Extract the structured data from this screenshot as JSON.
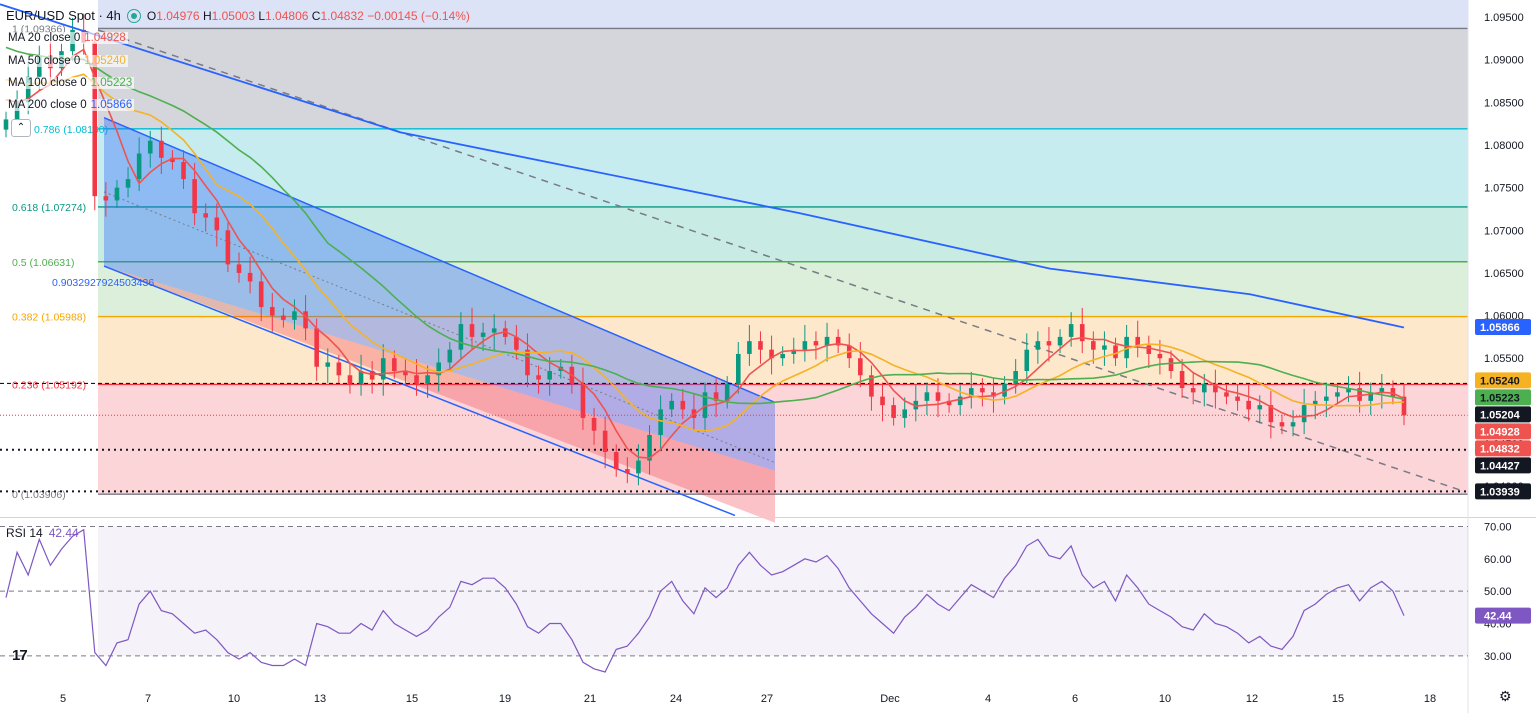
{
  "header": {
    "symbol": "EUR/USD Spot · 4h",
    "ohlc_label_o": "O",
    "open": "1.04976",
    "ohlc_label_h": "H",
    "high": "1.05003",
    "ohlc_label_l": "L",
    "low": "1.04806",
    "ohlc_label_c": "C",
    "close": "1.04832",
    "change": "−0.00145 (−0.14%)"
  },
  "indicators": [
    {
      "label": "MA 20 close 0",
      "value": "1.04928",
      "color": "#ef5350"
    },
    {
      "label": "MA 50 close 0",
      "value": "1.05240",
      "color": "#f5b324"
    },
    {
      "label": "MA 100 close 0",
      "value": "1.05223",
      "color": "#4caf50"
    },
    {
      "label": "MA 200 close 0",
      "value": "1.05866",
      "color": "#2962ff"
    }
  ],
  "rsi": {
    "label": "RSI 14",
    "value": "42.44",
    "color": "#7e57c2"
  },
  "chart_data": [
    {
      "type": "candlestick",
      "timeframe": "4h",
      "x_ticks": [
        "5",
        "7",
        "10",
        "13",
        "15",
        "19",
        "21",
        "24",
        "27",
        "Dec",
        "4",
        "6",
        "10",
        "12",
        "15",
        "18"
      ],
      "ylim": [
        1.0365,
        1.097
      ],
      "y_ticks": [
        "1.09500",
        "1.09000",
        "1.08500",
        "1.08000",
        "1.07500",
        "1.07000",
        "1.06500",
        "1.06000",
        "1.05500",
        "1.05000",
        "1.04500",
        "1.04000"
      ],
      "closes": [
        1.083,
        1.085,
        1.088,
        1.0905,
        1.089,
        1.091,
        1.0935,
        1.092,
        1.074,
        1.0735,
        1.075,
        1.076,
        1.079,
        1.0805,
        1.0785,
        1.078,
        1.076,
        1.072,
        1.0715,
        1.07,
        1.066,
        1.065,
        1.064,
        1.061,
        1.06,
        1.0595,
        1.0605,
        1.0585,
        1.054,
        1.0545,
        1.053,
        1.052,
        1.0535,
        1.0525,
        1.055,
        1.0535,
        1.053,
        1.052,
        1.053,
        1.0545,
        1.056,
        1.059,
        1.0575,
        1.058,
        1.0585,
        1.0575,
        1.056,
        1.053,
        1.0525,
        1.0535,
        1.054,
        1.052,
        1.048,
        1.0465,
        1.044,
        1.042,
        1.0415,
        1.043,
        1.046,
        1.049,
        1.05,
        1.049,
        1.048,
        1.051,
        1.05,
        1.052,
        1.0555,
        1.057,
        1.056,
        1.055,
        1.0555,
        1.056,
        1.057,
        1.0565,
        1.0575,
        1.0565,
        1.055,
        1.053,
        1.0505,
        1.0495,
        1.048,
        1.049,
        1.05,
        1.051,
        1.05,
        1.0495,
        1.0505,
        1.0515,
        1.051,
        1.0505,
        1.052,
        1.0535,
        1.056,
        1.057,
        1.0565,
        1.0575,
        1.059,
        1.057,
        1.056,
        1.0565,
        1.055,
        1.0575,
        1.0565,
        1.0555,
        1.055,
        1.0535,
        1.0515,
        1.051,
        1.052,
        1.051,
        1.0505,
        1.05,
        1.049,
        1.0495,
        1.0475,
        1.047,
        1.0475,
        1.0495,
        1.05,
        1.0505,
        1.051,
        1.0515,
        1.05,
        1.051,
        1.0515,
        1.0505,
        1.0483
      ],
      "moving_averages": [
        {
          "name": "MA 20 close 0",
          "last": 1.04928
        },
        {
          "name": "MA 50 close 0",
          "last": 1.0524
        },
        {
          "name": "MA 100 close 0",
          "last": 1.05223
        },
        {
          "name": "MA 200 close 0",
          "last": 1.05866
        }
      ],
      "fibonacci": [
        {
          "label": "1 (1.09366)",
          "value": 1.09366,
          "color": "#787b86"
        },
        {
          "label": "0.786 (1.08190)",
          "value": 1.0819,
          "color": "#00bcd4"
        },
        {
          "label": "0.618 (1.07274)",
          "value": 1.07274,
          "color": "#089981"
        },
        {
          "label": "0.5 (1.06631)",
          "value": 1.06631,
          "color": "#4caf50"
        },
        {
          "label": "0.382 (1.05988)",
          "value": 1.05988,
          "color": "#f7a600"
        },
        {
          "label": "0.236 (1.05192)",
          "value": 1.05192,
          "color": "#f23645"
        },
        {
          "label": "0 (1.03906)",
          "value": 1.03906,
          "color": "#787b86"
        }
      ],
      "channel_label": "0.9032927924503436",
      "horizontal_levels": [
        {
          "value": 1.04427,
          "label": "1.04427",
          "style": "dotted"
        },
        {
          "value": 1.03939,
          "label": "1.03939",
          "style": "dotted"
        },
        {
          "value": 1.05204,
          "label": "1.05204",
          "style": "dashed"
        }
      ],
      "price_labels": [
        {
          "value": "1.05866",
          "color": "#2962ff"
        },
        {
          "value": "1.05240",
          "color": "#f5b324"
        },
        {
          "value": "1.05223",
          "color": "#4caf50"
        },
        {
          "value": "1.05204",
          "color": "#131722"
        },
        {
          "value": "1.04928",
          "color": "#ef5350"
        },
        {
          "value": "1.04832",
          "color": "#ef5350"
        },
        {
          "value": "1.04427",
          "color": "#131722"
        },
        {
          "value": "1.03939",
          "color": "#131722"
        }
      ]
    },
    {
      "type": "line",
      "name": "RSI 14",
      "ylim": [
        25,
        72
      ],
      "y_ticks": [
        "70.00",
        "60.00",
        "50.00",
        "40.00",
        "30.00"
      ],
      "guides": [
        70,
        50,
        30
      ],
      "values": [
        48,
        62,
        55,
        66,
        58,
        63,
        67,
        69,
        31,
        27,
        34,
        35,
        46,
        50,
        44,
        43,
        40,
        37,
        38,
        35,
        31,
        29,
        31,
        28,
        27,
        27,
        29,
        27,
        40,
        39,
        37,
        37,
        40,
        38,
        44,
        40,
        38,
        36,
        38,
        42,
        45,
        53,
        52,
        54,
        54,
        51,
        46,
        39,
        37,
        40,
        40,
        35,
        28,
        26,
        25,
        32,
        33,
        37,
        42,
        50,
        53,
        47,
        43,
        51,
        48,
        51,
        58,
        62,
        58,
        55,
        56,
        58,
        60,
        59,
        61,
        57,
        51,
        47,
        43,
        40,
        37,
        42,
        45,
        49,
        46,
        44,
        48,
        52,
        50,
        48,
        54,
        58,
        64,
        66,
        61,
        60,
        64,
        55,
        51,
        53,
        47,
        55,
        51,
        46,
        44,
        42,
        39,
        38,
        43,
        40,
        39,
        37,
        34,
        36,
        33,
        32,
        36,
        44,
        46,
        49,
        51,
        52,
        47,
        51,
        53,
        50,
        42.44
      ],
      "last": "42.44"
    }
  ]
}
